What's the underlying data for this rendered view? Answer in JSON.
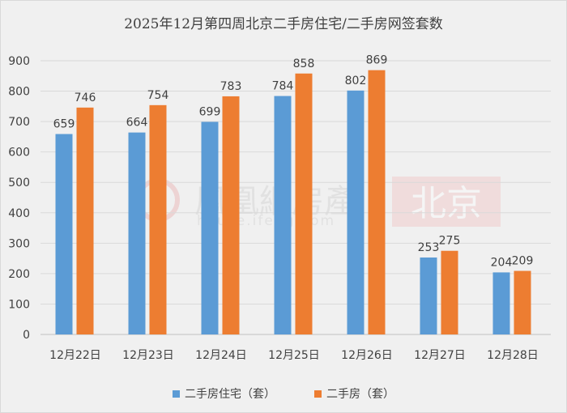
{
  "chart_data": {
    "type": "bar",
    "title": "2025年12月第四周北京二手房住宅/二手房网签套数",
    "categories": [
      "12月22日",
      "12月23日",
      "12月24日",
      "12月25日",
      "12月26日",
      "12月27日",
      "12月28日"
    ],
    "series": [
      {
        "name": "二手房住宅（套）",
        "color": "#5b9bd5",
        "values": [
          659,
          664,
          699,
          784,
          802,
          253,
          204
        ]
      },
      {
        "name": "二手房（套）",
        "color": "#ed7d31",
        "values": [
          746,
          754,
          783,
          858,
          869,
          275,
          209
        ]
      }
    ],
    "ylim": [
      0,
      900
    ],
    "yticks": [
      0,
      100,
      200,
      300,
      400,
      500,
      600,
      700,
      800,
      900
    ],
    "grid": true,
    "legend_position": "bottom"
  },
  "watermark": {
    "brand": "鳳凰網房產",
    "url": "house.ifeng.com",
    "city": "北京"
  }
}
